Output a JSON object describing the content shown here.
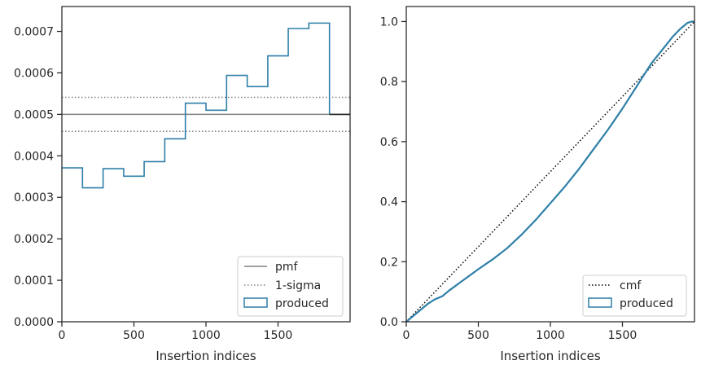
{
  "chart_data": [
    {
      "type": "histogram",
      "xlabel": "Insertion indices",
      "ylabel": "",
      "xlim": [
        0,
        2000
      ],
      "ylim": [
        0,
        0.00076
      ],
      "xticks": [
        0,
        500,
        1000,
        1500
      ],
      "x_tick_labels": [
        "0",
        "500",
        "1000",
        "1500"
      ],
      "yticks": [
        0,
        0.0001,
        0.0002,
        0.0003,
        0.0004,
        0.0005,
        0.0006,
        0.0007
      ],
      "y_tick_labels": [
        "0.0000",
        "0.0001",
        "0.0002",
        "0.0003",
        "0.0004",
        "0.0005",
        "0.0006",
        "0.0007"
      ],
      "bin_edges": [
        0,
        143,
        286,
        429,
        571,
        714,
        857,
        1000,
        1143,
        1286,
        1429,
        1571,
        1714,
        1857
      ],
      "series": [
        {
          "name": "produced",
          "kind": "step",
          "color": "#2f7fa8",
          "values": [
            0.000371,
            0.000323,
            0.000369,
            0.000351,
            0.000386,
            0.000441,
            0.000527,
            0.00051,
            0.000594,
            0.000567,
            0.000641,
            0.000707,
            0.00072
          ]
        },
        {
          "name": "pmf",
          "kind": "hline",
          "color": "#808080",
          "style": "solid",
          "y": 0.0005
        },
        {
          "name": "1-sigma",
          "kind": "hline",
          "color": "#808080",
          "style": "dotted",
          "y": [
            0.000459,
            0.000541
          ]
        }
      ],
      "pmf_tail": {
        "x": [
          1857,
          2000
        ],
        "y": 0.0005
      },
      "legend": {
        "location": "lower right",
        "entries": [
          "pmf",
          "1-sigma",
          "produced"
        ]
      },
      "grid": false
    },
    {
      "type": "line",
      "xlabel": "Insertion indices",
      "ylabel": "",
      "xlim": [
        0,
        2000
      ],
      "ylim": [
        0,
        1.05
      ],
      "xticks": [
        0,
        500,
        1000,
        1500
      ],
      "x_tick_labels": [
        "0",
        "500",
        "1000",
        "1500"
      ],
      "yticks": [
        0,
        0.2,
        0.4,
        0.6,
        0.8,
        1.0
      ],
      "y_tick_labels": [
        "0.0",
        "0.2",
        "0.4",
        "0.6",
        "0.8",
        "1.0"
      ],
      "series": [
        {
          "name": "cmf",
          "color": "#000000",
          "style": "dotted",
          "x": [
            0,
            2000
          ],
          "y": [
            0,
            1.0
          ]
        },
        {
          "name": "produced",
          "color": "#2f7fa8",
          "style": "solid",
          "x": [
            0,
            50,
            100,
            150,
            200,
            250,
            300,
            400,
            500,
            600,
            700,
            800,
            900,
            1000,
            1100,
            1200,
            1300,
            1400,
            1500,
            1600,
            1700,
            1800,
            1850,
            1900,
            1950,
            1980,
            2000
          ],
          "y": [
            0,
            0.02,
            0.04,
            0.06,
            0.075,
            0.085,
            0.105,
            0.14,
            0.175,
            0.208,
            0.245,
            0.29,
            0.34,
            0.395,
            0.45,
            0.51,
            0.575,
            0.64,
            0.71,
            0.785,
            0.86,
            0.92,
            0.95,
            0.975,
            0.995,
            1.0,
            1.0
          ]
        }
      ],
      "legend": {
        "location": "lower right",
        "entries": [
          "cmf",
          "produced"
        ]
      },
      "grid": false
    }
  ]
}
